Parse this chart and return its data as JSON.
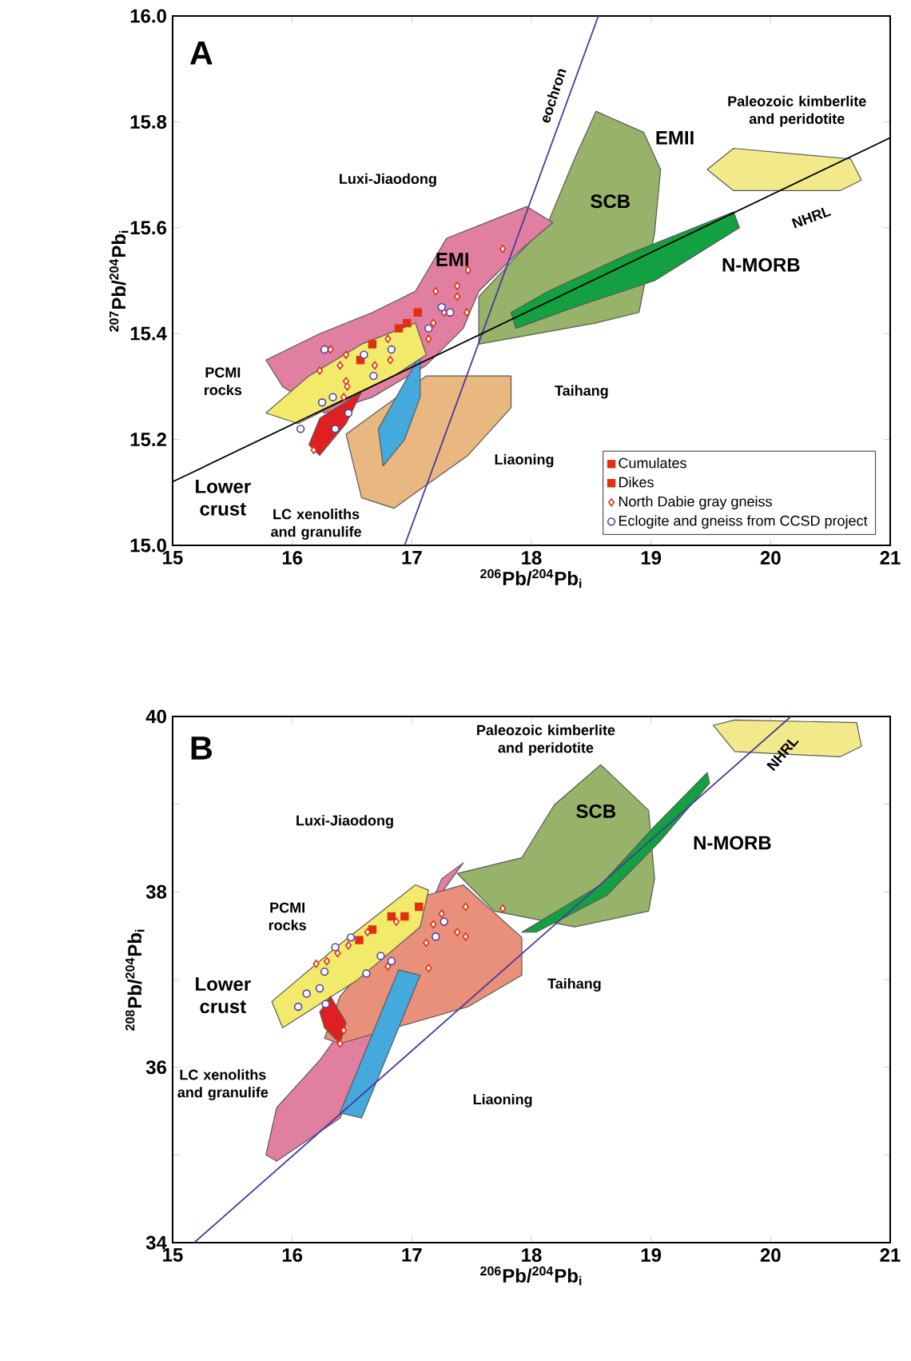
{
  "chart_data": [
    {
      "type": "scatter",
      "xlabel": "$^{206}$Pb/$^{204}$Pb$_{i}$",
      "ylabel": "$^{207}$Pb/$^{204}$Pb$_{i}$",
      "xlim": [
        15,
        21
      ],
      "ylim": [
        15.0,
        16.0
      ],
      "xticks": [
        15,
        16,
        17,
        18,
        19,
        20,
        21
      ],
      "yticks": [
        {
          "value": 15.0,
          "label": "15.0"
        },
        15.2,
        15.4,
        15.6,
        15.8,
        {
          "value": 16.0,
          "label": "16.0"
        }
      ],
      "legend": "bottom right",
      "annotations": [
        "A",
        "eochron",
        "Paleozoic kimberlite and peridotite",
        "EMII",
        "Luxi-Jiaodong",
        "SCB",
        "NHRL",
        "N-MORB",
        "EMI",
        "PCMI rocks",
        "Taihang",
        "Liaoning",
        "Lower crust",
        "LC xenoliths and granulife"
      ],
      "series": [
        {
          "type": "area",
          "color": "#e8b880",
          "x": [
            17.12,
            17.83,
            17.83,
            17.47,
            16.85,
            16.58,
            16.45
          ],
          "values": [
            15.32,
            15.32,
            15.26,
            15.17,
            15.07,
            15.09,
            15.21
          ]
        },
        {
          "type": "area",
          "color": "#97b36a",
          "x": [
            18.54,
            18.94,
            19.08,
            19.03,
            18.9,
            18.54,
            17.56,
            17.56,
            18.14,
            18.36
          ],
          "values": [
            15.82,
            15.78,
            15.71,
            15.59,
            15.44,
            15.42,
            15.38,
            15.47,
            15.61,
            15.73
          ]
        },
        {
          "type": "area",
          "color": "#e07fa0",
          "x": [
            15.78,
            16.23,
            16.67,
            17.03,
            17.29,
            17.96,
            18.18,
            17.92,
            17.56,
            17.43,
            17.12,
            16.67,
            16.27,
            15.92
          ],
          "values": [
            15.35,
            15.4,
            15.44,
            15.48,
            15.58,
            15.64,
            15.61,
            15.56,
            15.48,
            15.41,
            15.34,
            15.28,
            15.25,
            15.3
          ]
        },
        {
          "type": "area",
          "color": "#44aadd",
          "x": [
            17.07,
            17.07,
            16.94,
            16.76,
            16.72
          ],
          "values": [
            15.36,
            15.28,
            15.2,
            15.15,
            15.22
          ]
        },
        {
          "type": "area",
          "color": "#f2ea6a",
          "x": [
            15.78,
            16.14,
            16.58,
            17.03,
            17.12,
            16.85,
            16.49,
            16.05
          ],
          "values": [
            15.25,
            15.32,
            15.38,
            15.42,
            15.36,
            15.32,
            15.28,
            15.23
          ]
        },
        {
          "type": "area",
          "color": "#e02020",
          "x": [
            16.14,
            16.23,
            16.58,
            16.45,
            16.23
          ],
          "values": [
            15.19,
            15.24,
            15.29,
            15.23,
            15.17
          ]
        },
        {
          "type": "area",
          "color": "#12a040",
          "x": [
            17.83,
            18.14,
            18.81,
            19.69,
            19.74,
            19.03,
            18.36,
            17.87
          ],
          "values": [
            15.44,
            15.48,
            15.55,
            15.63,
            15.6,
            15.5,
            15.45,
            15.41
          ]
        },
        {
          "type": "area",
          "color": "#f2ea8a",
          "x": [
            19.47,
            19.69,
            20.67,
            20.76,
            20.58,
            19.69
          ],
          "values": [
            15.71,
            15.75,
            15.73,
            15.69,
            15.67,
            15.67
          ]
        },
        {
          "type": "line",
          "color": "#4b3a9a",
          "x": [
            16.94,
            18.56
          ],
          "values": [
            15.0,
            16.0
          ]
        },
        {
          "type": "line",
          "color": "#000000",
          "x": [
            15,
            21
          ],
          "values": [
            15.12,
            15.77
          ]
        },
        {
          "name": "Cumulates",
          "color": "#e03010",
          "marker": "square",
          "x": [
            16.67,
            16.89,
            17.05
          ],
          "values": [
            15.38,
            15.41,
            15.44
          ]
        },
        {
          "name": "Dikes",
          "color": "#e03010",
          "marker": "square",
          "x": [
            16.96,
            16.57
          ],
          "values": [
            15.42,
            15.35
          ]
        },
        {
          "name": "North Dabie gray gneiss",
          "color": "#e03010",
          "marker": "diamond",
          "x": [
            17.76,
            17.47,
            17.2,
            17.38,
            17.38,
            17.46,
            17.27,
            17.18,
            17.14,
            16.8,
            16.82,
            16.69,
            16.45,
            16.4,
            16.45,
            16.46,
            16.43,
            16.32,
            16.23,
            16.18
          ],
          "values": [
            15.56,
            15.52,
            15.48,
            15.49,
            15.47,
            15.44,
            15.44,
            15.42,
            15.39,
            15.39,
            15.35,
            15.34,
            15.36,
            15.34,
            15.31,
            15.3,
            15.28,
            15.37,
            15.33,
            15.18
          ]
        },
        {
          "name": "Eclogite and gneiss from CCSD project",
          "color": "#5040b0",
          "marker": "circle",
          "x": [
            17.25,
            17.32,
            17.14,
            16.83,
            16.68,
            16.6,
            16.27,
            16.34,
            16.25,
            16.47,
            16.36,
            16.07
          ],
          "values": [
            15.45,
            15.44,
            15.41,
            15.37,
            15.32,
            15.36,
            15.37,
            15.28,
            15.27,
            15.25,
            15.22,
            15.22
          ]
        }
      ]
    },
    {
      "type": "scatter",
      "xlabel": "$^{206}$Pb/$^{204}$Pb$_{i}$",
      "ylabel": "$^{208}$Pb/$^{204}$Pb$_{i}$",
      "xlim": [
        15,
        21
      ],
      "ylim": [
        34,
        40
      ],
      "xticks": [
        15,
        16,
        17,
        18,
        19,
        20,
        21
      ],
      "yticks": [
        34,
        {
          "value": 35,
          "label": null
        },
        36,
        {
          "value": 37,
          "label": null
        },
        38,
        {
          "value": 39,
          "label": null
        },
        40
      ],
      "annotations": [
        "B",
        "Paleozoic kimberlite and peridotite",
        "SCB",
        "N-MORB",
        "NHRL",
        "Luxi-Jiaodong",
        "PCMI rocks",
        "Taihang",
        "Lower crust",
        "LC xenoliths and granulife",
        "Liaoning"
      ],
      "series": [
        {
          "type": "area",
          "color": "#e07fa0",
          "x": [
            15.78,
            15.87,
            16.4,
            17.25,
            17.43,
            16.23,
            15.87
          ],
          "values": [
            35.0,
            34.93,
            35.42,
            38.15,
            38.33,
            36.08,
            35.54
          ]
        },
        {
          "type": "area",
          "color": "#97b36a",
          "x": [
            17.38,
            17.92,
            18.19,
            18.58,
            18.98,
            19.03,
            18.98,
            18.36,
            17.69
          ],
          "values": [
            38.21,
            38.39,
            38.99,
            39.45,
            38.93,
            38.15,
            37.78,
            37.6,
            37.78
          ]
        },
        {
          "type": "area",
          "color": "#e8907a",
          "x": [
            16.27,
            16.4,
            17.12,
            17.43,
            17.92,
            17.92,
            17.47,
            16.4
          ],
          "values": [
            36.33,
            36.81,
            37.96,
            38.08,
            37.48,
            37.05,
            36.69,
            36.27
          ]
        },
        {
          "type": "area",
          "color": "#f2ea6a",
          "x": [
            15.83,
            16.36,
            17.03,
            17.14,
            17.07,
            16.54,
            15.92
          ],
          "values": [
            36.75,
            37.36,
            38.08,
            38.02,
            37.6,
            36.99,
            36.45
          ]
        },
        {
          "type": "area",
          "color": "#e02020",
          "x": [
            16.23,
            16.32,
            16.45,
            16.4,
            16.27
          ],
          "values": [
            36.63,
            36.81,
            36.51,
            36.27,
            36.45
          ]
        },
        {
          "type": "area",
          "color": "#44aadd",
          "x": [
            16.4,
            16.89,
            17.07,
            16.58
          ],
          "values": [
            35.48,
            37.11,
            37.05,
            35.42
          ]
        },
        {
          "type": "area",
          "color": "#12a040",
          "x": [
            17.92,
            18.58,
            19.03,
            19.47,
            19.49,
            19.07,
            18.63,
            18.04
          ],
          "values": [
            37.54,
            38.08,
            38.75,
            39.36,
            39.24,
            38.57,
            37.96,
            37.54
          ]
        },
        {
          "type": "area",
          "color": "#f2ea8a",
          "x": [
            19.52,
            19.7,
            20.72,
            20.76,
            20.58,
            19.7
          ],
          "values": [
            39.9,
            39.96,
            39.93,
            39.66,
            39.54,
            39.6
          ]
        },
        {
          "type": "line",
          "color": "#4b3a9a",
          "x": [
            15.18,
            20.17
          ],
          "values": [
            34,
            40
          ]
        },
        {
          "color": "#e03010",
          "marker": "square",
          "x": [
            17.06,
            16.83,
            16.67
          ],
          "values": [
            37.83,
            37.72,
            37.57
          ]
        },
        {
          "color": "#e03010",
          "marker": "square",
          "x": [
            16.94,
            16.56
          ],
          "values": [
            37.72,
            37.45
          ]
        },
        {
          "color": "#e03010",
          "marker": "diamond",
          "x": [
            17.76,
            17.45,
            17.25,
            17.18,
            17.38,
            17.45,
            17.12,
            16.87,
            16.63,
            16.47,
            16.38,
            16.29,
            16.2,
            16.8,
            17.14,
            16.43,
            16.4
          ],
          "values": [
            37.81,
            37.83,
            37.75,
            37.63,
            37.54,
            37.49,
            37.42,
            37.66,
            37.54,
            37.39,
            37.3,
            37.21,
            37.18,
            37.15,
            37.13,
            36.42,
            36.27
          ]
        },
        {
          "color": "#5040b0",
          "marker": "circle",
          "x": [
            17.27,
            17.2,
            16.74,
            16.83,
            16.62,
            16.49,
            16.36,
            16.27,
            16.23,
            16.12,
            16.05,
            16.28
          ],
          "values": [
            37.66,
            37.49,
            37.27,
            37.21,
            37.07,
            37.48,
            37.37,
            37.09,
            36.9,
            36.84,
            36.69,
            36.72
          ]
        }
      ]
    }
  ]
}
